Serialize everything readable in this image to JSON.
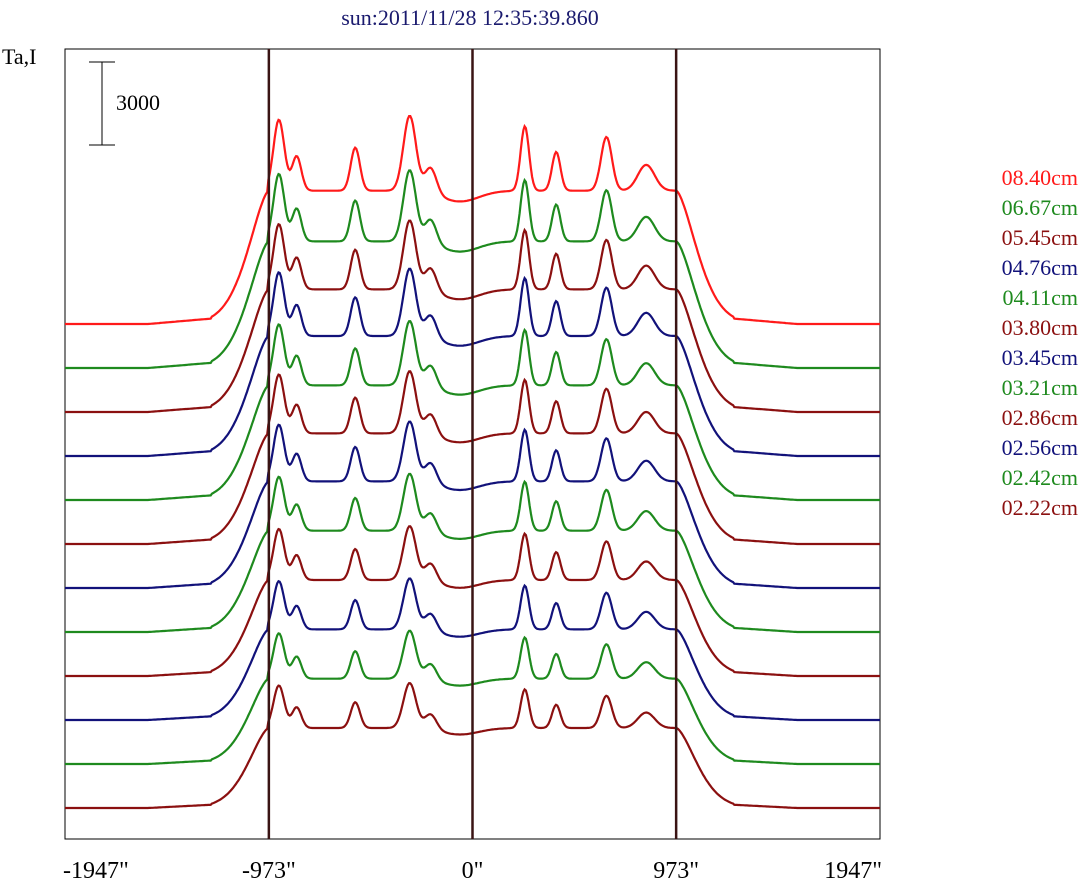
{
  "chart_data": {
    "type": "line",
    "title": "sun:2011/11/28 12:35:39.860",
    "ylabel": "Ta,I",
    "xlabel": "",
    "x_ticks": [
      "-1947\"",
      "-973\"",
      "0\"",
      "973\"",
      "1947\""
    ],
    "x_tick_values": [
      -1947,
      -973,
      0,
      973,
      1947
    ],
    "xlim": [
      -1947,
      1947
    ],
    "vertical_markers": [
      -973,
      0,
      973
    ],
    "scale_bar": {
      "label": "3000",
      "value": 3000
    },
    "grid": false,
    "legend_position": "right",
    "colors": {
      "red": "#ff1a1a",
      "green": "#1e8a1e",
      "darkred": "#8b1010",
      "blue": "#12127a",
      "marker": "#3a1414"
    },
    "series": [
      {
        "name": "08.40cm",
        "color": "#ff1a1a",
        "offset": 11,
        "amp": 1.0
      },
      {
        "name": "06.67cm",
        "color": "#1e8a1e",
        "offset": 10,
        "amp": 0.95
      },
      {
        "name": "05.45cm",
        "color": "#8b1010",
        "offset": 9,
        "amp": 0.92
      },
      {
        "name": "04.76cm",
        "color": "#12127a",
        "offset": 8,
        "amp": 0.9
      },
      {
        "name": "04.11cm",
        "color": "#1e8a1e",
        "offset": 7,
        "amp": 0.86
      },
      {
        "name": "03.80cm",
        "color": "#8b1010",
        "offset": 6,
        "amp": 0.83
      },
      {
        "name": "03.45cm",
        "color": "#12127a",
        "offset": 5,
        "amp": 0.8
      },
      {
        "name": "03.21cm",
        "color": "#1e8a1e",
        "offset": 4,
        "amp": 0.76
      },
      {
        "name": "02.86cm",
        "color": "#8b1010",
        "offset": 3,
        "amp": 0.72
      },
      {
        "name": "02.56cm",
        "color": "#12127a",
        "offset": 2,
        "amp": 0.68
      },
      {
        "name": "02.42cm",
        "color": "#1e8a1e",
        "offset": 1,
        "amp": 0.64
      },
      {
        "name": "02.22cm",
        "color": "#8b1010",
        "offset": 0,
        "amp": 0.6
      }
    ]
  }
}
